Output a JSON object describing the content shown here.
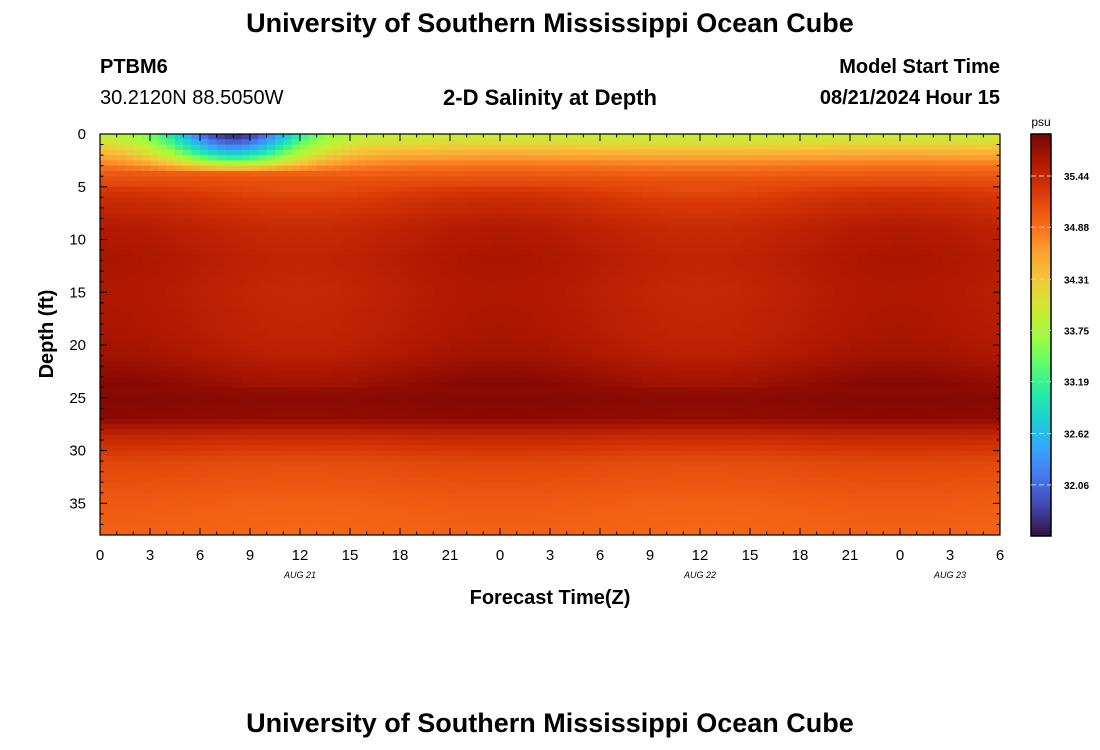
{
  "page": {
    "title": "University of Southern Mississippi Ocean Cube",
    "footer_title": "University of Southern Mississippi Ocean Cube",
    "station": "PTBM6",
    "coords": "30.2120N  88.5050W",
    "subtitle": "2-D Salinity at Depth",
    "model_start_label": "Model Start Time",
    "model_start_value": "08/21/2024 Hour 15"
  },
  "chart_data": {
    "type": "heatmap",
    "title": "2-D Salinity at Depth",
    "xlabel": "Forecast Time(Z)",
    "ylabel": "Depth (ft)",
    "x_tick_labels": [
      "0",
      "3",
      "6",
      "9",
      "12",
      "15",
      "18",
      "21",
      "0",
      "3",
      "6",
      "9",
      "12",
      "15",
      "18",
      "21",
      "0",
      "3",
      "6"
    ],
    "date_labels": [
      {
        "label": "AUG 21",
        "at_tick": 4
      },
      {
        "label": "AUG 22",
        "at_tick": 12
      },
      {
        "label": "AUG 23",
        "at_tick": 17
      }
    ],
    "xlim_hours": [
      0,
      54
    ],
    "y_ticks": [
      0,
      5,
      10,
      15,
      20,
      25,
      30,
      35
    ],
    "ylim_ft": [
      0,
      38
    ],
    "colorbar": {
      "unit": "psu",
      "range": [
        31.5,
        35.9
      ],
      "tick_values": [
        35.44,
        34.88,
        34.31,
        33.75,
        33.19,
        32.62,
        32.06
      ],
      "tick_labels": [
        "35.44",
        "34.88",
        "34.31",
        "33.75",
        "33.19",
        "32.62",
        "32.06"
      ],
      "colors": [
        "#30123b",
        "#4145ab",
        "#4675ed",
        "#39a2fc",
        "#1bcfd4",
        "#24eca6",
        "#61fc6c",
        "#a4fc3b",
        "#d1e834",
        "#f3c63a",
        "#fe9b2d",
        "#f36315",
        "#d93806",
        "#b11901",
        "#7a0403"
      ]
    },
    "salinity_profile": [
      {
        "depth": 0,
        "psu": 33.9
      },
      {
        "depth": 1,
        "psu": 34.2
      },
      {
        "depth": 2,
        "psu": 34.55
      },
      {
        "depth": 3,
        "psu": 34.85
      },
      {
        "depth": 4,
        "psu": 35.05
      },
      {
        "depth": 6,
        "psu": 35.3
      },
      {
        "depth": 9,
        "psu": 35.5
      },
      {
        "depth": 12,
        "psu": 35.55
      },
      {
        "depth": 15,
        "psu": 35.52
      },
      {
        "depth": 19,
        "psu": 35.55
      },
      {
        "depth": 21,
        "psu": 35.6
      },
      {
        "depth": 23,
        "psu": 35.72
      },
      {
        "depth": 25,
        "psu": 35.82
      },
      {
        "depth": 27,
        "psu": 35.78
      },
      {
        "depth": 28.5,
        "psu": 35.45
      },
      {
        "depth": 31,
        "psu": 35.15
      },
      {
        "depth": 35,
        "psu": 35.0
      },
      {
        "depth": 38,
        "psu": 34.95
      }
    ],
    "freshwater_lens": {
      "center_hour": 8,
      "half_width_hours": 5.5,
      "max_depth_ft": 3.5,
      "min_psu": 31.6
    }
  }
}
